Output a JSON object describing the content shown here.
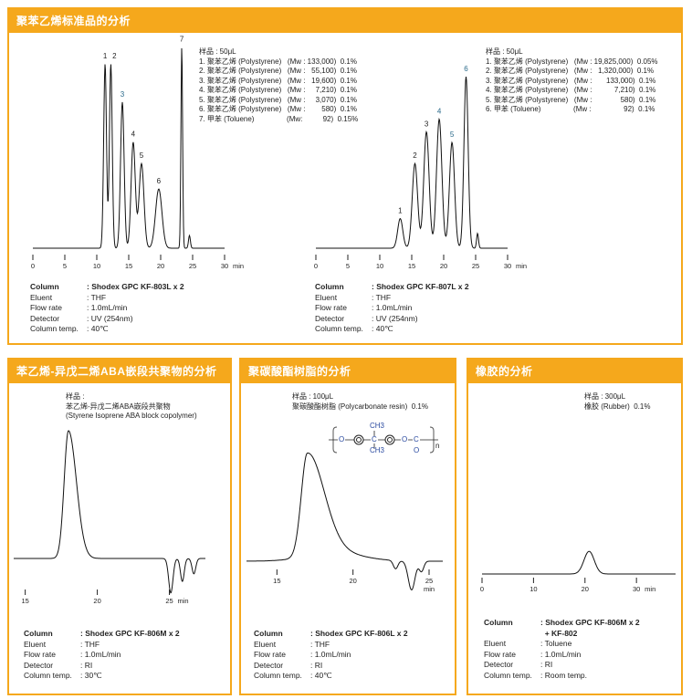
{
  "panels": [
    {
      "title": "聚苯乙烯标准品的分析"
    },
    {
      "title": "苯乙烯-异戊二烯ABA嵌段共聚物的分析"
    },
    {
      "title": "聚碳酸酯树脂的分析"
    },
    {
      "title": "橡胶的分析"
    }
  ],
  "samples": {
    "a": [
      "样品 : 50μL",
      "1. 聚苯乙烯 (Polystyrene)   (Mw : 133,000)  0.1%",
      "2. 聚苯乙烯 (Polystyrene)   (Mw :   55,100)  0.1%",
      "3. 聚苯乙烯 (Polystyrene)   (Mw :   19,600)  0.1%",
      "4. 聚苯乙烯 (Polystyrene)   (Mw :     7,210)  0.1%",
      "5. 聚苯乙烯 (Polystyrene)   (Mw :     3,070)  0.1%",
      "6. 聚苯乙烯 (Polystyrene)   (Mw :        580)  0.1%",
      "7. 甲苯 (Toluene)                (Mw:          92)  0.15%"
    ],
    "b": [
      "样品 : 50μL",
      "1. 聚苯乙烯 (Polystyrene)   (Mw : 19,825,000)  0.05%",
      "2. 聚苯乙烯 (Polystyrene)   (Mw :   1,320,000)  0.1%",
      "3. 聚苯乙烯 (Polystyrene)   (Mw :       133,000)  0.1%",
      "4. 聚苯乙烯 (Polystyrene)   (Mw :           7,210)  0.1%",
      "5. 聚苯乙烯 (Polystyrene)   (Mw :              580)  0.1%",
      "6. 甲苯 (Toluene)                (Mw :                92)  0.1%"
    ],
    "c": [
      "样品 :",
      "苯乙烯-异戊二烯ABA嵌段共聚物",
      "(Styrene Isoprene ABA block copolymer)"
    ],
    "d": [
      "样品 : 100μL",
      "聚碳酸酯树脂 (Polycarbonate resin)  0.1%"
    ],
    "e": [
      "样品 : 300μL",
      "橡胶 (Rubber)  0.1%"
    ]
  },
  "structure": {
    "ch3_top": "CH3",
    "ch3_bottom": "CH3",
    "o1": "O",
    "o2": "O",
    "c": "C",
    "c2": "C",
    "o3": "O",
    "n": "n"
  },
  "conditions": [
    {
      "column": "Shodex GPC KF-803L x 2",
      "eluent": "THF",
      "flow": "1.0mL/min",
      "detector": "UV (254nm)",
      "temp": "40℃"
    },
    {
      "column": "Shodex GPC KF-807L x 2",
      "eluent": "THF",
      "flow": "1.0mL/min",
      "detector": "UV (254nm)",
      "temp": "40℃"
    },
    {
      "column": "Shodex GPC KF-806M x 2",
      "eluent": "THF",
      "flow": "1.0mL/min",
      "detector": "RI",
      "temp": "30℃"
    },
    {
      "column": "Shodex GPC KF-806L x 2",
      "eluent": "THF",
      "flow": "1.0mL/min",
      "detector": "RI",
      "temp": "40℃"
    },
    {
      "column": "Shodex GPC KF-806M x 2",
      "column2": "+ KF-802",
      "eluent": "Toluene",
      "flow": "1.0mL/min",
      "detector": "RI",
      "temp": "Room temp."
    }
  ],
  "labels": {
    "column": "Column",
    "eluent": "Eluent",
    "flow": "Flow rate",
    "detector": "Detector",
    "temp": "Column temp.",
    "sep": ":"
  },
  "chart_data": [
    {
      "type": "line",
      "xlabel": "min",
      "xlim": [
        0,
        30
      ],
      "ticks": [
        0,
        5,
        10,
        15,
        20,
        25,
        30
      ],
      "color": "#111",
      "peaks": [
        {
          "label": "1",
          "rt": 11.3,
          "h": 0.87,
          "w": 0.22
        },
        {
          "label": "2",
          "rt": 12.2,
          "h": 0.87,
          "w": 0.22
        },
        {
          "label": "3",
          "rt": 14.0,
          "h": 0.69,
          "w": 0.28
        },
        {
          "label": "4",
          "rt": 15.7,
          "h": 0.5,
          "w": 0.33
        },
        {
          "label": "5",
          "rt": 17.0,
          "h": 0.4,
          "w": 0.38
        },
        {
          "label": "6",
          "rt": 19.7,
          "h": 0.28,
          "w": 0.5
        },
        {
          "label": "7",
          "rt": 23.3,
          "h": 0.95,
          "w": 0.13
        },
        {
          "label": "",
          "rt": 24.5,
          "h": 0.06,
          "w": 0.15
        }
      ]
    },
    {
      "type": "line",
      "xlabel": "min",
      "xlim": [
        0,
        30
      ],
      "ticks": [
        0,
        5,
        10,
        15,
        20,
        25,
        30
      ],
      "color": "#111",
      "peaks": [
        {
          "label": "1",
          "rt": 13.2,
          "h": 0.14,
          "w": 0.4
        },
        {
          "label": "2",
          "rt": 15.5,
          "h": 0.4,
          "w": 0.42
        },
        {
          "label": "3",
          "rt": 17.3,
          "h": 0.55,
          "w": 0.42
        },
        {
          "label": "4",
          "rt": 19.3,
          "h": 0.61,
          "w": 0.42
        },
        {
          "label": "5",
          "rt": 21.3,
          "h": 0.5,
          "w": 0.4
        },
        {
          "label": "6",
          "rt": 23.5,
          "h": 0.81,
          "w": 0.33
        },
        {
          "label": "",
          "rt": 25.3,
          "h": 0.07,
          "w": 0.15
        }
      ]
    },
    {
      "type": "line",
      "xlabel": "min",
      "xlim": [
        14.2,
        27.5
      ],
      "ticks": [
        15,
        20,
        25
      ],
      "color": "#111",
      "peaks": [
        {
          "label": "",
          "rt": 18.0,
          "h": 1.0,
          "w": 0.3,
          "tail": 0.55
        },
        {
          "label": "",
          "rt": 25.1,
          "h": -0.27,
          "w": 0.15
        },
        {
          "label": "",
          "rt": 25.9,
          "h": -0.18,
          "w": 0.13
        },
        {
          "label": "",
          "rt": 26.7,
          "h": -0.12,
          "w": 0.13
        }
      ]
    },
    {
      "type": "line",
      "xlabel": "min",
      "xlim": [
        13,
        25
      ],
      "ticks": [
        15,
        20,
        25
      ],
      "color": "#111",
      "peaks": [
        {
          "label": "",
          "rt": 17.0,
          "h": 1.0,
          "w": 0.4,
          "tail": 1.1
        },
        {
          "label": "",
          "rt": 18.8,
          "h": 0.08,
          "w": 1.8
        },
        {
          "label": "",
          "rt": 22.8,
          "h": -0.08,
          "w": 0.15
        },
        {
          "label": "",
          "rt": 23.85,
          "h": -0.28,
          "w": 0.22
        },
        {
          "label": "",
          "rt": 24.5,
          "h": -0.1,
          "w": 0.15
        }
      ]
    },
    {
      "type": "line",
      "xlabel": "min",
      "xlim": [
        0,
        36
      ],
      "ticks": [
        0,
        10,
        20,
        30
      ],
      "color": "#111",
      "peaks": [
        {
          "label": "",
          "rt": 20.8,
          "h": 0.22,
          "w": 1.0
        }
      ]
    }
  ]
}
